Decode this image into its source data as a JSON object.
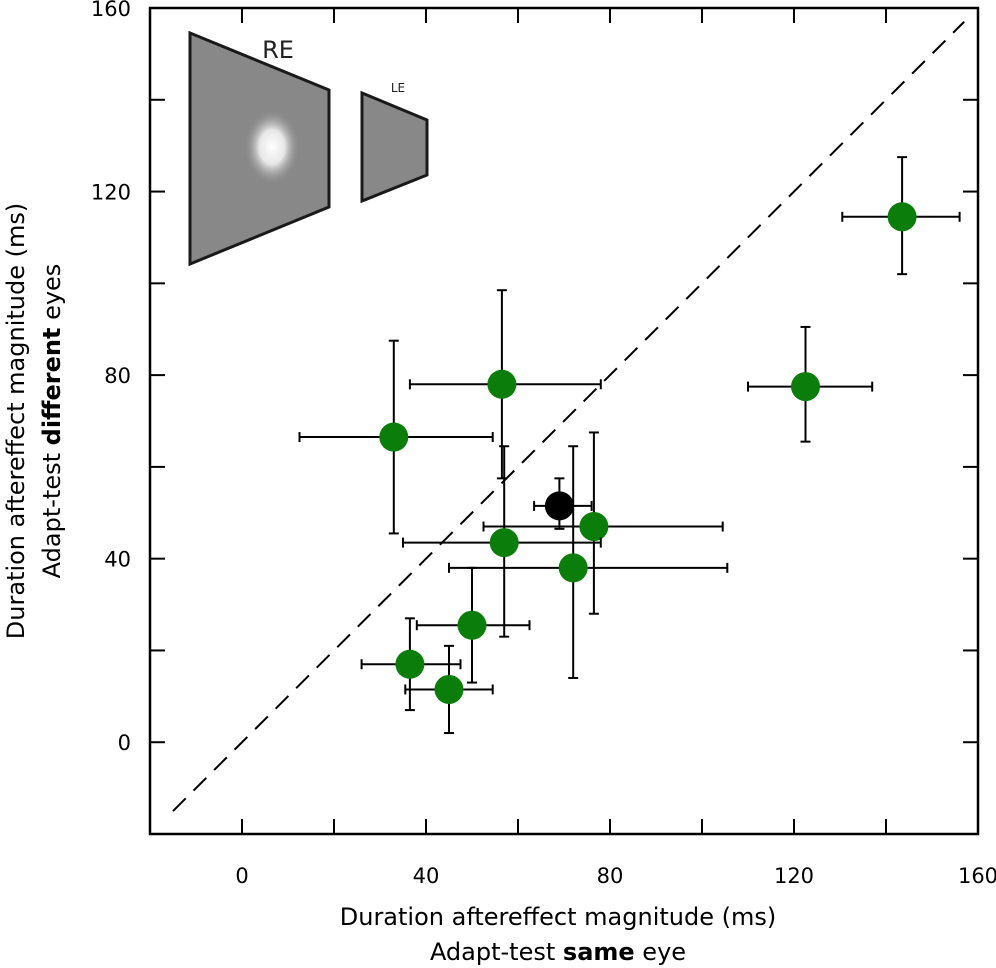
{
  "chart_data": {
    "type": "scatter",
    "xlabel_line1": "Duration aftereffect magnitude (ms)",
    "xlabel_line2": {
      "pre": "Adapt-test ",
      "bold": "same",
      "post": " eye"
    },
    "ylabel_line1": "Duration aftereffect magnitude (ms)",
    "ylabel_line2": {
      "pre": "Adapt-test ",
      "bold": "different",
      "post": " eyes"
    },
    "xlim": [
      -20,
      160
    ],
    "ylim": [
      -20,
      160
    ],
    "x_ticks": [
      0,
      40,
      80,
      120,
      160
    ],
    "y_ticks": [
      0,
      40,
      80,
      120,
      160
    ],
    "x_tick_labels": [
      "0",
      "40",
      "80",
      "120",
      "160"
    ],
    "y_tick_labels": [
      "0",
      "40",
      "80",
      "120",
      "160"
    ],
    "reference_line": {
      "from": [
        -15,
        -15
      ],
      "to": [
        157,
        157
      ],
      "style": "dashed"
    },
    "points": [
      {
        "x": 143.5,
        "y": 114.5,
        "xerr": [
          130.5,
          156
        ],
        "yerr": [
          102,
          127.5
        ],
        "color": "#0a7d0a"
      },
      {
        "x": 122.5,
        "y": 77.5,
        "xerr": [
          110,
          137
        ],
        "yerr": [
          65.5,
          90.5
        ],
        "color": "#0a7d0a"
      },
      {
        "x": 56.5,
        "y": 78,
        "xerr": [
          36.5,
          78
        ],
        "yerr": [
          57.5,
          98.5
        ],
        "color": "#0a7d0a"
      },
      {
        "x": 33,
        "y": 66.5,
        "xerr": [
          12.5,
          54.5
        ],
        "yerr": [
          45.5,
          87.5
        ],
        "color": "#0a7d0a"
      },
      {
        "x": 76.5,
        "y": 47,
        "xerr": [
          52.5,
          104.5
        ],
        "yerr": [
          28,
          67.5
        ],
        "color": "#0a7d0a"
      },
      {
        "x": 57,
        "y": 43.5,
        "xerr": [
          35,
          78
        ],
        "yerr": [
          23,
          64.5
        ],
        "color": "#0a7d0a"
      },
      {
        "x": 72,
        "y": 38,
        "xerr": [
          45,
          105.5
        ],
        "yerr": [
          14,
          64.5
        ],
        "color": "#0a7d0a"
      },
      {
        "x": 50,
        "y": 25.5,
        "xerr": [
          38,
          62.5
        ],
        "yerr": [
          13,
          38
        ],
        "color": "#0a7d0a"
      },
      {
        "x": 36.5,
        "y": 17,
        "xerr": [
          26,
          47.5
        ],
        "yerr": [
          7,
          27
        ],
        "color": "#0a7d0a"
      },
      {
        "x": 45,
        "y": 11.5,
        "xerr": [
          35.5,
          54.5
        ],
        "yerr": [
          2,
          21
        ],
        "color": "#0a7d0a"
      },
      {
        "x": 69,
        "y": 51.5,
        "xerr": [
          63.5,
          76
        ],
        "yerr": [
          46.5,
          57.5
        ],
        "color": "#000000"
      }
    ],
    "inset": {
      "re_label": "RE",
      "le_label": "LE"
    }
  }
}
